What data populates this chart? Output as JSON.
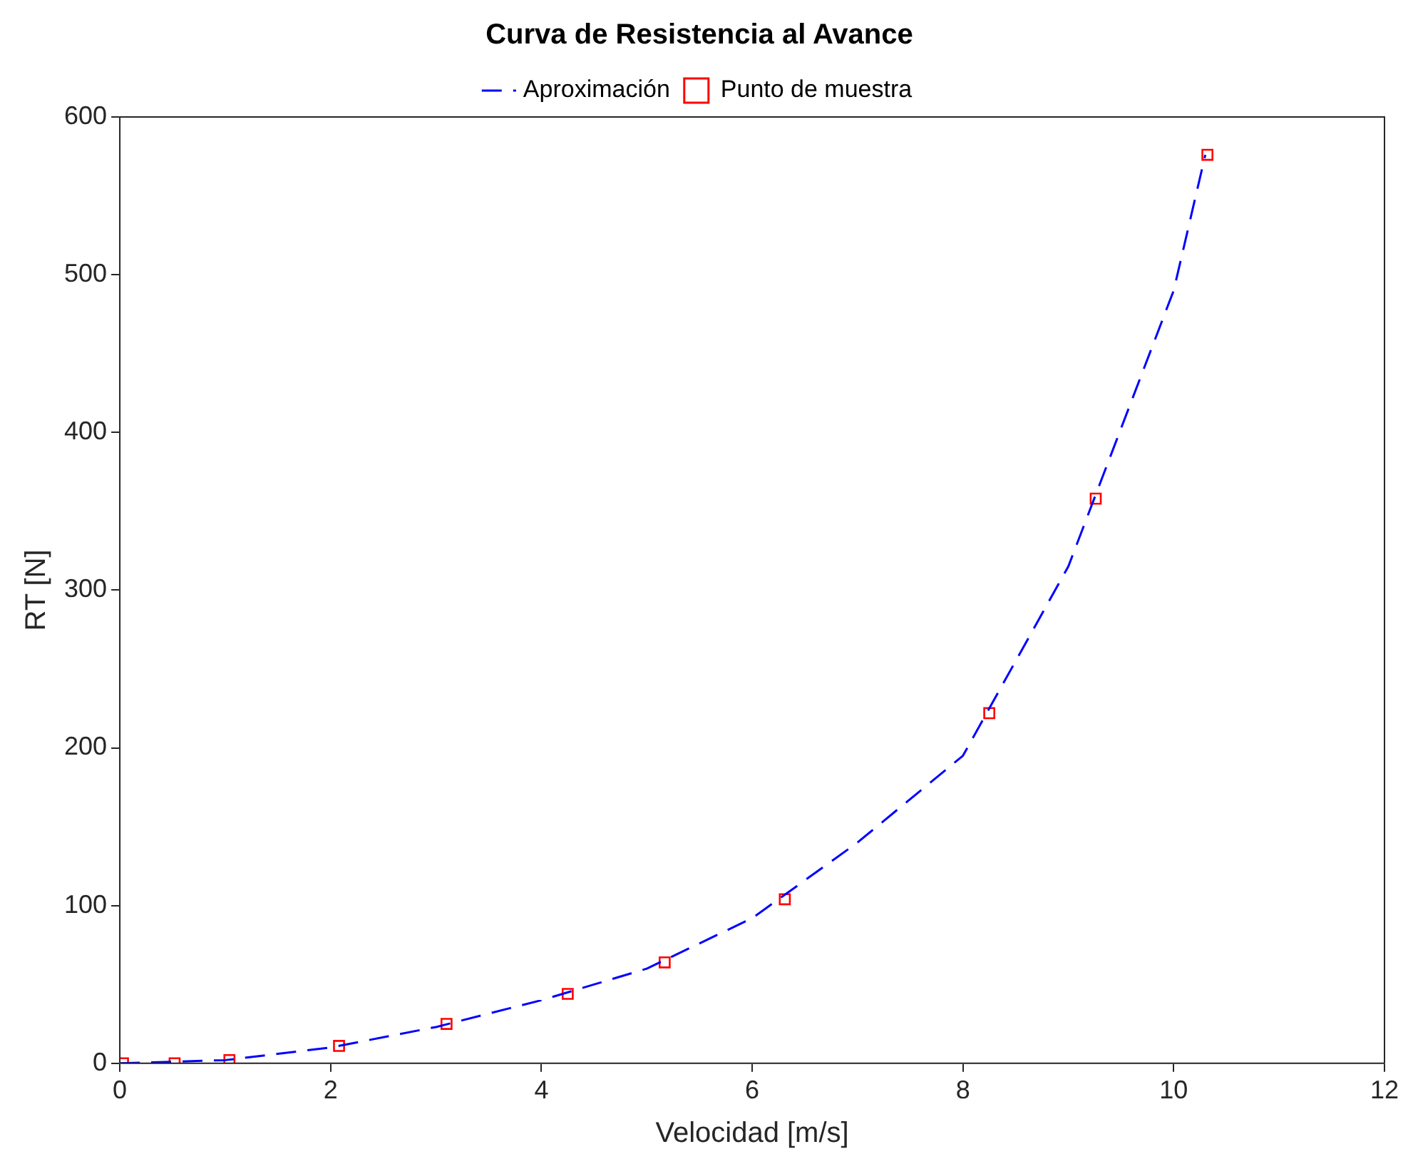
{
  "chart_data": {
    "type": "line",
    "title": "Curva de Resistencia al Avance",
    "xlabel": "Velocidad [m/s]",
    "ylabel": "RT [N]",
    "xlim": [
      0,
      12
    ],
    "xticks": [
      0,
      2,
      4,
      6,
      8,
      10,
      12
    ],
    "ylim": [
      0,
      600
    ],
    "yticks": [
      0,
      100,
      200,
      300,
      400,
      500,
      600
    ],
    "grid": false,
    "legend": "top",
    "series": [
      {
        "name": "Aproximación",
        "color": "#0000ff",
        "line_style": "dashed",
        "marker": "none",
        "x": [
          0,
          1,
          2,
          3,
          4,
          5,
          6,
          7,
          8,
          9,
          10,
          10.3
        ],
        "values": [
          0,
          2,
          10,
          23,
          40,
          60,
          92,
          140,
          195,
          315,
          490,
          576
        ]
      },
      {
        "name": "Punto de muestra",
        "type": "scatter",
        "color": "#ff0000",
        "marker": "square",
        "x": [
          0.03,
          0.52,
          1.04,
          2.08,
          3.1,
          4.25,
          5.17,
          6.31,
          8.25,
          9.26,
          10.32
        ],
        "values": [
          0,
          0,
          2,
          11,
          25,
          44,
          64,
          104,
          222,
          358,
          576
        ]
      }
    ]
  }
}
